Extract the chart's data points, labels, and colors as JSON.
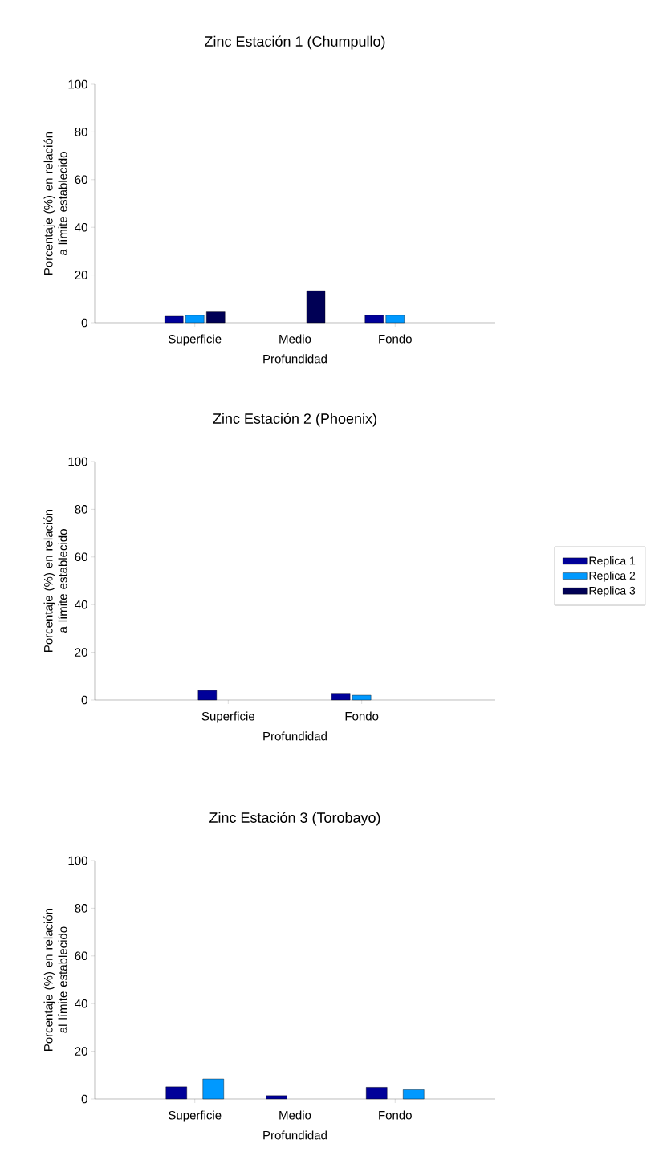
{
  "chart_data": [
    {
      "type": "bar",
      "title": "Zinc Estación 1 (Chumpullo)",
      "xlabel": "Profundidad",
      "ylabel": "Porcentaje (%) en relación a límite establecido",
      "categories": [
        "Superficie",
        "Medio",
        "Fondo"
      ],
      "ylim": [
        0,
        100
      ],
      "yticks": [
        0,
        20,
        40,
        60,
        80,
        100
      ],
      "series": [
        {
          "color": "#000099",
          "values": [
            2.7,
            null,
            3.1
          ]
        },
        {
          "color": "#0099ff",
          "values": [
            3.1,
            null,
            3.1
          ]
        },
        {
          "color": "#000055",
          "values": [
            4.5,
            13.4,
            null
          ]
        }
      ]
    },
    {
      "type": "bar",
      "title": "Zinc Estación 2 (Phoenix)",
      "xlabel": "Profundidad",
      "ylabel": "Porcentaje (%) en relación a límite establecido",
      "categories": [
        "Superficie",
        "Fondo"
      ],
      "ylim": [
        0,
        100
      ],
      "yticks": [
        0,
        20,
        40,
        60,
        80,
        100
      ],
      "legend": "right",
      "series": [
        {
          "name": "Replica 1",
          "color": "#000099",
          "values": [
            4.0,
            2.8
          ]
        },
        {
          "name": "Replica 2",
          "color": "#0099ff",
          "values": [
            null,
            2.0
          ]
        },
        {
          "name": "Replica 3",
          "color": "#000055",
          "values": [
            null,
            null
          ]
        }
      ]
    },
    {
      "type": "bar",
      "title": "Zinc Estación 3 (Torobayo)",
      "xlabel": "Profundidad",
      "ylabel": "Porcentaje (%) en relación al límite establecido",
      "categories": [
        "Superficie",
        "Medio",
        "Fondo"
      ],
      "ylim": [
        0,
        100
      ],
      "yticks": [
        0,
        20,
        40,
        60,
        80,
        100
      ],
      "series": [
        {
          "color": "#000099",
          "values": [
            5.1,
            1.4,
            4.9
          ]
        },
        {
          "color": "#0099ff",
          "values": [
            8.4,
            null,
            3.9
          ]
        }
      ]
    }
  ]
}
